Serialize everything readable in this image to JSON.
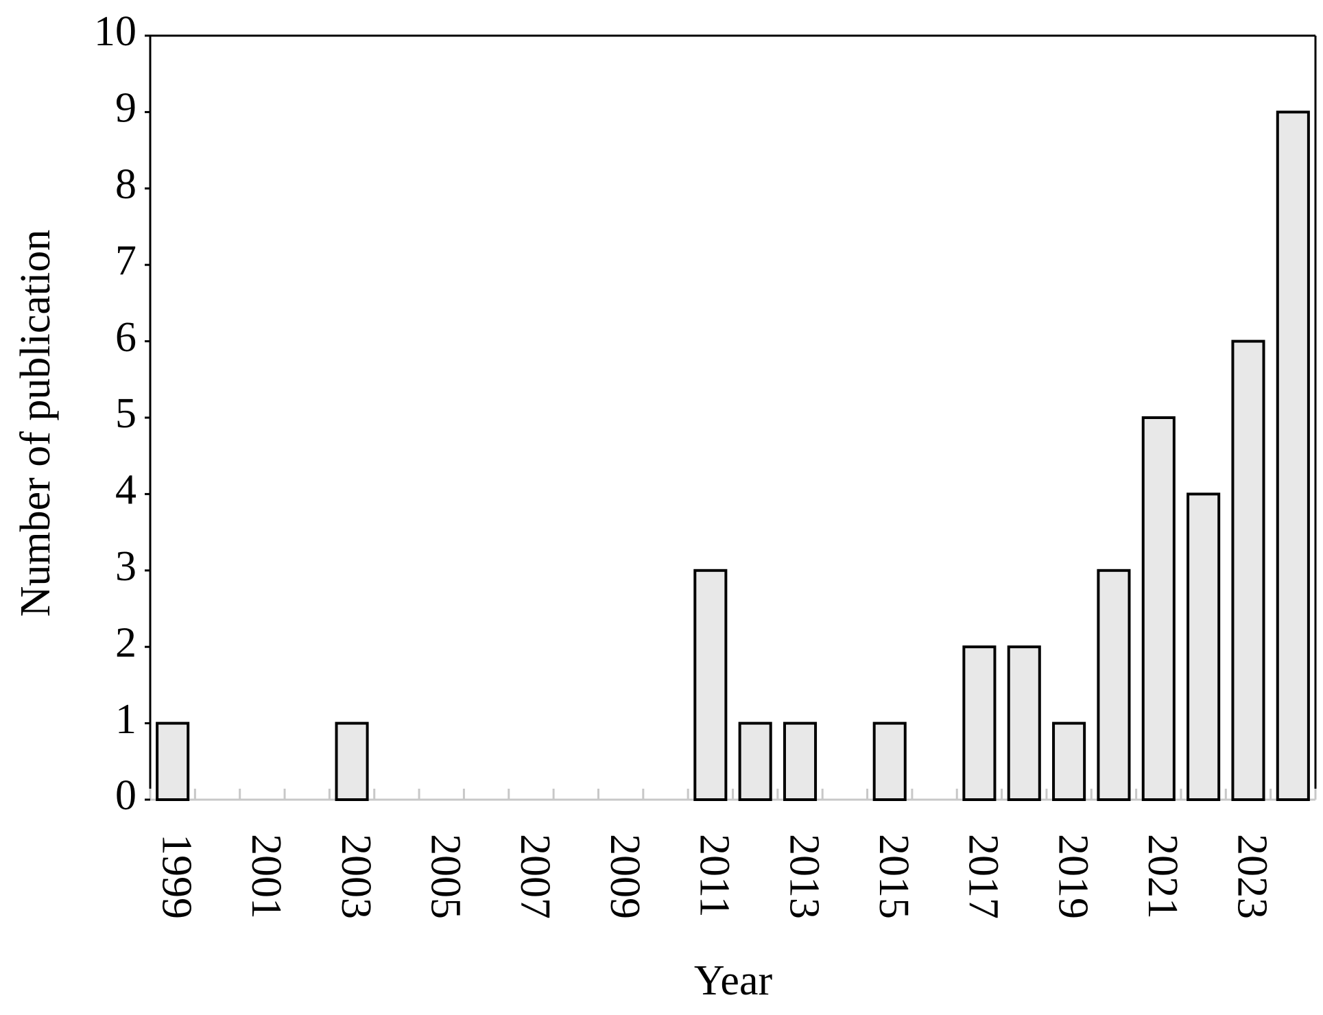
{
  "chart_data": {
    "type": "bar",
    "x_label": "Year",
    "y_label": "Number of publication",
    "categories": [
      "1999",
      null,
      "2001",
      null,
      "2003",
      null,
      "2005",
      null,
      "2007",
      null,
      "2009",
      null,
      "2011",
      null,
      "2013",
      null,
      "2015",
      null,
      "2017",
      null,
      "2019",
      null,
      "2021",
      null,
      "2023",
      null
    ],
    "values": [
      1,
      0,
      0,
      0,
      1,
      0,
      0,
      0,
      0,
      0,
      0,
      0,
      3,
      1,
      1,
      0,
      1,
      0,
      2,
      2,
      1,
      3,
      5,
      4,
      6,
      9
    ],
    "color": "#e8e8e8",
    "ylim": [
      0,
      10
    ],
    "yticks": [
      0,
      1,
      2,
      3,
      4,
      5,
      6,
      7,
      8,
      9,
      10
    ],
    "grid": false
  }
}
